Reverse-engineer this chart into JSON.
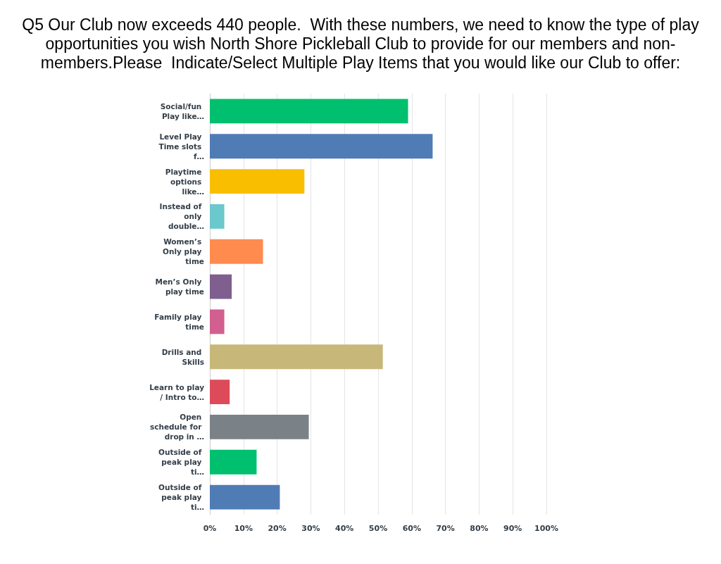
{
  "chart_data": {
    "type": "bar",
    "orientation": "horizontal",
    "title": "Q5 Our Club now exceeds 440 people.  With these numbers, we need to know the type of play opportunities you wish North Shore Pickleball Club to provide for our members and non-members.Please  Indicate/Select Multiple Play Items that you would like our Club to offer:",
    "categories": [
      "Social/fun Play like…",
      "Level Play Time slots f…",
      "Playtime options like…",
      "Instead of only double…",
      "Women’s Only play time",
      "Men’s Only play time",
      "Family play time",
      "Drills and Skills",
      "Learn to play/ Intro to…",
      "Open schedule for drop in …",
      "Outside of peak play ti…",
      "Outside of peak play ti…"
    ],
    "values": [
      58.9,
      66.2,
      28.1,
      4.3,
      15.8,
      6.5,
      4.3,
      51.4,
      5.9,
      29.4,
      13.9,
      20.8
    ],
    "colors": [
      "#00bf6f",
      "#507cb6",
      "#f9be00",
      "#6bc8cd",
      "#ff8b4f",
      "#7f5e90",
      "#d25f90",
      "#c7b879",
      "#dd4b5a",
      "#7a8187",
      "#00bf6f",
      "#507cb6"
    ],
    "xlim": [
      0,
      100
    ],
    "xticks": [
      {
        "value": 0,
        "label": "0%"
      },
      {
        "value": 10,
        "label": "10%"
      },
      {
        "value": 20,
        "label": "20%"
      },
      {
        "value": 30,
        "label": "30%"
      },
      {
        "value": 40,
        "label": "40%"
      },
      {
        "value": 50,
        "label": "50%"
      },
      {
        "value": 60,
        "label": "60%"
      },
      {
        "value": 70,
        "label": "70%"
      },
      {
        "value": 80,
        "label": "80%"
      },
      {
        "value": 90,
        "label": "90%"
      },
      {
        "value": 100,
        "label": "100%"
      }
    ],
    "grid": "x"
  }
}
